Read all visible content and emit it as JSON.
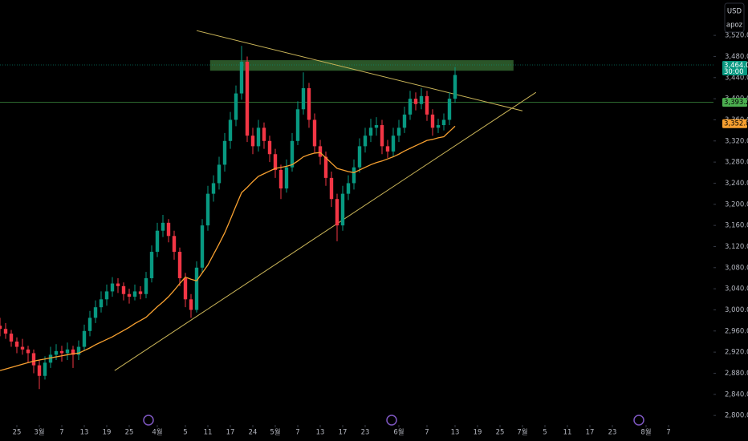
{
  "chart_data": {
    "type": "candlestick",
    "currency": "USD",
    "symbol_note": "apoz",
    "xlim": [
      0,
      127
    ],
    "ylim": [
      2782,
      3587
    ],
    "xticks": [
      {
        "value": 3,
        "label": "25"
      },
      {
        "value": 7,
        "label": "3월"
      },
      {
        "value": 11,
        "label": "7"
      },
      {
        "value": 15,
        "label": "13"
      },
      {
        "value": 19,
        "label": "19"
      },
      {
        "value": 23,
        "label": "25"
      },
      {
        "value": 28,
        "label": "4월"
      },
      {
        "value": 33,
        "label": "5"
      },
      {
        "value": 37,
        "label": "11"
      },
      {
        "value": 41,
        "label": "17"
      },
      {
        "value": 45,
        "label": "24"
      },
      {
        "value": 49,
        "label": "5월"
      },
      {
        "value": 53,
        "label": "7"
      },
      {
        "value": 57,
        "label": "13"
      },
      {
        "value": 61,
        "label": "17"
      },
      {
        "value": 65,
        "label": "23"
      },
      {
        "value": 71,
        "label": "6월"
      },
      {
        "value": 76,
        "label": "7"
      },
      {
        "value": 81,
        "label": "13"
      },
      {
        "value": 85,
        "label": "19"
      },
      {
        "value": 89,
        "label": "25"
      },
      {
        "value": 93,
        "label": "7월"
      },
      {
        "value": 97,
        "label": "5"
      },
      {
        "value": 101,
        "label": "11"
      },
      {
        "value": 105,
        "label": "17"
      },
      {
        "value": 109,
        "label": "23"
      },
      {
        "value": 115,
        "label": "8월"
      },
      {
        "value": 119,
        "label": "7"
      }
    ],
    "yticks": [
      {
        "value": 2800,
        "label": "2,800.0"
      },
      {
        "value": 2840,
        "label": "2,840.0"
      },
      {
        "value": 2880,
        "label": "2,880.0"
      },
      {
        "value": 2920,
        "label": "2,920.0"
      },
      {
        "value": 2960,
        "label": "2,960.0"
      },
      {
        "value": 3000,
        "label": "3,000.0"
      },
      {
        "value": 3040,
        "label": "3,040.0"
      },
      {
        "value": 3080,
        "label": "3,080.0"
      },
      {
        "value": 3120,
        "label": "3,120.0"
      },
      {
        "value": 3160,
        "label": "3,160.0"
      },
      {
        "value": 3200,
        "label": "3,200.0"
      },
      {
        "value": 3240,
        "label": "3,240.0"
      },
      {
        "value": 3280,
        "label": "3,280.0"
      },
      {
        "value": 3320,
        "label": "3,320.0"
      },
      {
        "value": 3360,
        "label": "3,360.0"
      },
      {
        "value": 3400,
        "label": "3,400.0"
      },
      {
        "value": 3440,
        "label": "3,440.0"
      },
      {
        "value": 3480,
        "label": "3,480.0"
      },
      {
        "value": 3520,
        "label": "3,520.0"
      }
    ],
    "up_color": "#089981",
    "down_color": "#f23645",
    "series": [
      {
        "type": "candlestick",
        "values": [
          [
            2970,
            2985,
            2950,
            2964
          ],
          [
            2964,
            2975,
            2945,
            2955
          ],
          [
            2955,
            2962,
            2930,
            2940
          ],
          [
            2940,
            2948,
            2918,
            2930
          ],
          [
            2930,
            2945,
            2915,
            2925
          ],
          [
            2925,
            2932,
            2900,
            2918
          ],
          [
            2918,
            2925,
            2880,
            2895
          ],
          [
            2895,
            2905,
            2850,
            2875
          ],
          [
            2875,
            2912,
            2868,
            2900
          ],
          [
            2900,
            2930,
            2890,
            2915
          ],
          [
            2915,
            2935,
            2905,
            2922
          ],
          [
            2922,
            2932,
            2902,
            2918
          ],
          [
            2918,
            2938,
            2905,
            2925
          ],
          [
            2925,
            2932,
            2890,
            2915
          ],
          [
            2915,
            2942,
            2905,
            2930
          ],
          [
            2930,
            2972,
            2922,
            2960
          ],
          [
            2960,
            2998,
            2950,
            2985
          ],
          [
            2985,
            3018,
            2975,
            3005
          ],
          [
            3005,
            3035,
            2995,
            3020
          ],
          [
            3020,
            3048,
            3008,
            3035
          ],
          [
            3035,
            3062,
            3025,
            3050
          ],
          [
            3050,
            3060,
            3032,
            3045
          ],
          [
            3045,
            3052,
            3018,
            3030
          ],
          [
            3030,
            3040,
            3012,
            3025
          ],
          [
            3025,
            3048,
            3018,
            3035
          ],
          [
            3035,
            3045,
            3020,
            3030
          ],
          [
            3030,
            3072,
            3022,
            3060
          ],
          [
            3060,
            3122,
            3052,
            3110
          ],
          [
            3110,
            3165,
            3100,
            3150
          ],
          [
            3150,
            3180,
            3138,
            3165
          ],
          [
            3165,
            3172,
            3128,
            3140
          ],
          [
            3140,
            3150,
            3095,
            3110
          ],
          [
            3110,
            3118,
            3045,
            3060
          ],
          [
            3060,
            3070,
            3005,
            3020
          ],
          [
            3020,
            3030,
            2985,
            3000
          ],
          [
            3000,
            3092,
            2995,
            3080
          ],
          [
            3080,
            3172,
            3070,
            3160
          ],
          [
            3160,
            3235,
            3150,
            3220
          ],
          [
            3220,
            3255,
            3205,
            3240
          ],
          [
            3240,
            3290,
            3228,
            3275
          ],
          [
            3275,
            3335,
            3262,
            3320
          ],
          [
            3320,
            3375,
            3305,
            3360
          ],
          [
            3360,
            3425,
            3348,
            3410
          ],
          [
            3410,
            3500,
            3398,
            3470
          ],
          [
            3470,
            3480,
            3318,
            3330
          ],
          [
            3330,
            3345,
            3295,
            3310
          ],
          [
            3310,
            3360,
            3300,
            3345
          ],
          [
            3345,
            3355,
            3305,
            3320
          ],
          [
            3320,
            3330,
            3280,
            3295
          ],
          [
            3295,
            3305,
            3250,
            3265
          ],
          [
            3265,
            3275,
            3210,
            3230
          ],
          [
            3230,
            3285,
            3222,
            3270
          ],
          [
            3270,
            3335,
            3262,
            3320
          ],
          [
            3320,
            3395,
            3312,
            3380
          ],
          [
            3380,
            3450,
            3370,
            3420
          ],
          [
            3420,
            3430,
            3345,
            3360
          ],
          [
            3360,
            3372,
            3298,
            3310
          ],
          [
            3310,
            3322,
            3275,
            3290
          ],
          [
            3290,
            3300,
            3235,
            3250
          ],
          [
            3250,
            3262,
            3195,
            3210
          ],
          [
            3210,
            3220,
            3130,
            3160
          ],
          [
            3160,
            3235,
            3150,
            3220
          ],
          [
            3220,
            3255,
            3208,
            3240
          ],
          [
            3240,
            3285,
            3228,
            3270
          ],
          [
            3270,
            3325,
            3260,
            3310
          ],
          [
            3310,
            3345,
            3298,
            3330
          ],
          [
            3330,
            3362,
            3318,
            3345
          ],
          [
            3345,
            3365,
            3330,
            3350
          ],
          [
            3350,
            3360,
            3295,
            3310
          ],
          [
            3310,
            3322,
            3288,
            3300
          ],
          [
            3300,
            3345,
            3290,
            3330
          ],
          [
            3330,
            3360,
            3318,
            3345
          ],
          [
            3345,
            3385,
            3335,
            3370
          ],
          [
            3370,
            3415,
            3360,
            3400
          ],
          [
            3400,
            3412,
            3378,
            3390
          ],
          [
            3390,
            3420,
            3380,
            3405
          ],
          [
            3405,
            3415,
            3358,
            3370
          ],
          [
            3370,
            3380,
            3330,
            3345
          ],
          [
            3345,
            3362,
            3335,
            3350
          ],
          [
            3350,
            3372,
            3340,
            3360
          ],
          [
            3360,
            3412,
            3350,
            3400
          ],
          [
            3400,
            3460,
            3392,
            3445
          ]
        ]
      },
      {
        "type": "line",
        "color": "#f7a030",
        "values": [
          2885,
          2888,
          2891,
          2894,
          2897,
          2900,
          2903,
          2905,
          2907,
          2909,
          2911,
          2913,
          2915,
          2917,
          2918,
          2923,
          2928,
          2934,
          2939,
          2944,
          2949,
          2955,
          2961,
          2967,
          2974,
          2980,
          2986,
          2996,
          3006,
          3015,
          3025,
          3037,
          3050,
          3062,
          3058,
          3055,
          3070,
          3085,
          3105,
          3125,
          3146,
          3171,
          3197,
          3222,
          3232,
          3243,
          3253,
          3258,
          3263,
          3268,
          3270,
          3272,
          3275,
          3282,
          3290,
          3294,
          3297,
          3298,
          3288,
          3278,
          3268,
          3265,
          3262,
          3260,
          3265,
          3270,
          3275,
          3279,
          3282,
          3286,
          3290,
          3295,
          3301,
          3306,
          3311,
          3316,
          3321,
          3323,
          3326,
          3328,
          3338,
          3348
        ]
      }
    ],
    "trendlines": [
      {
        "color": "#c9b458",
        "x": [
          35,
          93
        ],
        "y": [
          3529,
          3377
        ]
      },
      {
        "color": "#c9b458",
        "x": [
          20.4,
          95.4
        ],
        "y": [
          2885,
          3412
        ]
      }
    ],
    "zone": {
      "color": "#2f5e2c",
      "x": [
        37.4,
        91.4
      ],
      "y": [
        3453,
        3473
      ]
    },
    "price_tags": [
      {
        "value": 3464,
        "label": "3,464.0",
        "sub": "30:00",
        "color": "#089981"
      },
      {
        "value": 3393.2,
        "label": "3,393.2",
        "color": "#4caf50"
      },
      {
        "value": 3352.8,
        "label": "3,352.8",
        "color": "#f7a030"
      }
    ]
  }
}
